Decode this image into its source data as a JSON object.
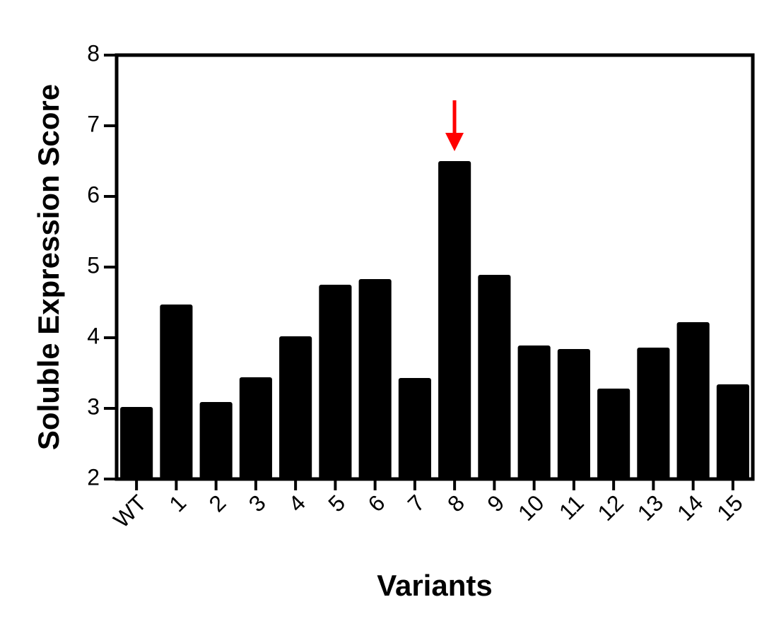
{
  "chart_data": {
    "type": "bar",
    "xlabel": "Variants",
    "ylabel": "Soluble Expression Score",
    "categories": [
      "WT",
      "1",
      "2",
      "3",
      "4",
      "5",
      "6",
      "7",
      "8",
      "9",
      "10",
      "11",
      "12",
      "13",
      "14",
      "15"
    ],
    "values": [
      3.02,
      4.47,
      3.09,
      3.44,
      4.02,
      4.75,
      4.83,
      3.43,
      6.5,
      4.89,
      3.89,
      3.84,
      3.28,
      3.86,
      4.22,
      3.34
    ],
    "color": "#000000",
    "ylim": [
      2,
      8
    ],
    "yticks": [
      2,
      3,
      4,
      5,
      6,
      7,
      8
    ],
    "grid": false
  }
}
